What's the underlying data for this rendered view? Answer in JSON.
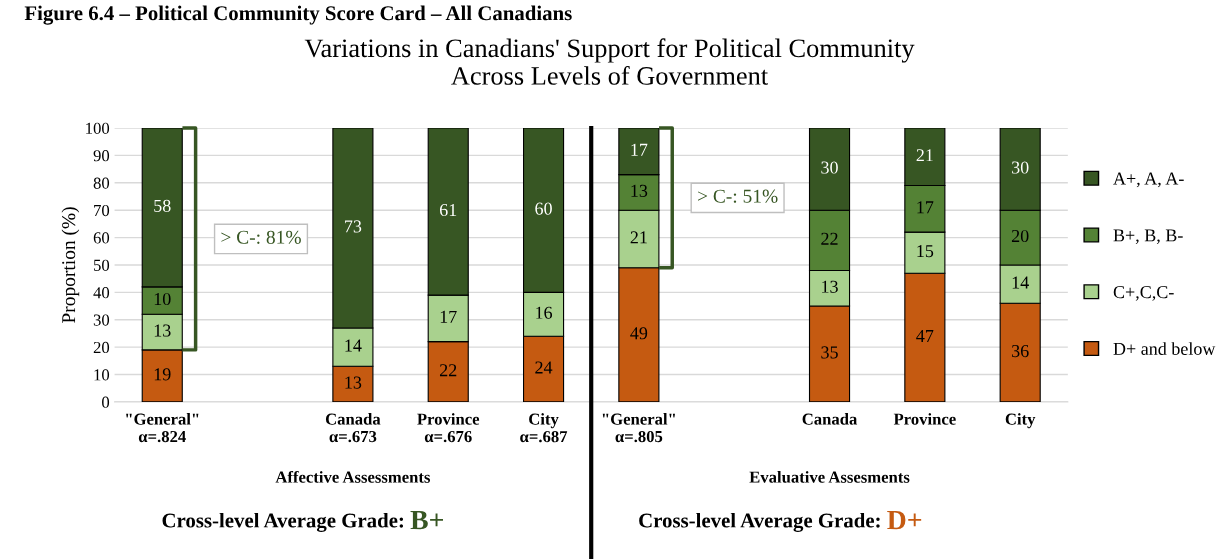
{
  "chart_data": [
    {
      "type": "bar",
      "stacked": true,
      "title": "Variations in Canadians' Support for Political Community\nAcross Levels of Government",
      "ylabel": "Proportion (%)",
      "categories": [
        "\"General\"\nα=.824",
        null,
        "Canada\nα=.673",
        "Province\nα=.676",
        "City\nα=.687"
      ],
      "series": [
        {
          "color": "#c55a11",
          "values": [
            19,
            null,
            13,
            22,
            24
          ]
        },
        {
          "color": "#a9d18e",
          "values": [
            13,
            null,
            14,
            17,
            16
          ]
        },
        {
          "color": "#548235",
          "values": [
            10,
            null,
            null,
            null,
            null
          ]
        },
        {
          "color": "#375623",
          "values": [
            58,
            null,
            73,
            61,
            60
          ]
        }
      ],
      "ylim": [
        0,
        100
      ],
      "yticks": [
        0,
        10,
        20,
        30,
        40,
        50,
        60,
        70,
        80,
        90,
        100
      ],
      "grid": "y",
      "data_labels": true,
      "annotations": [
        "Figure 6.4 – Political Community Score Card – All Canadians",
        "> C-: 81%",
        "Affective Assessments",
        "Cross-level Average Grade:",
        "B+"
      ]
    },
    {
      "type": "bar",
      "stacked": true,
      "categories": [
        "\"General\"\nα=.805",
        null,
        "Canada",
        "Province",
        "City"
      ],
      "series": [
        {
          "name": "D+ and below",
          "color": "#c55a11",
          "values": [
            49,
            null,
            35,
            47,
            36
          ]
        },
        {
          "name": "C+,C,C-",
          "color": "#a9d18e",
          "values": [
            21,
            null,
            13,
            15,
            14
          ]
        },
        {
          "name": "B+, B, B-",
          "color": "#548235",
          "values": [
            13,
            null,
            22,
            17,
            20
          ]
        },
        {
          "name": "A+, A, A-",
          "color": "#375623",
          "values": [
            17,
            null,
            30,
            21,
            30
          ]
        }
      ],
      "ylim": [
        0,
        100
      ],
      "yticks": [
        0,
        10,
        20,
        30,
        40,
        50,
        60,
        70,
        80,
        90,
        100
      ],
      "tick_labels": "x",
      "grid": "y",
      "legend": "right",
      "data_labels": true,
      "annotations": [
        "> C-: 51%",
        "Evaluative Assesments",
        "Cross-level Average Grade:",
        "D+"
      ]
    }
  ]
}
